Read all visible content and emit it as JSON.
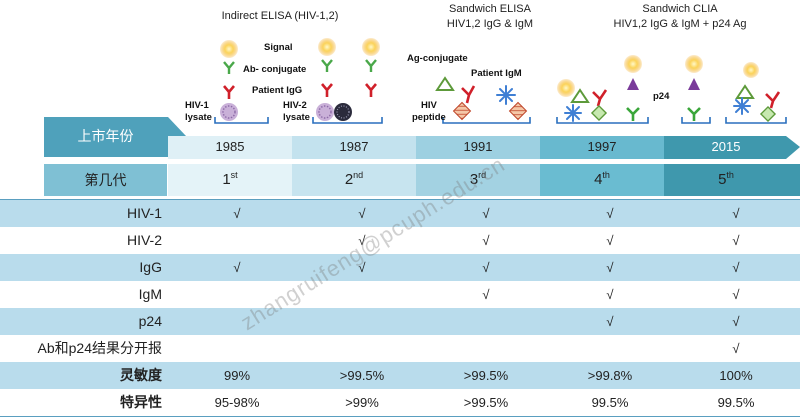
{
  "headers": {
    "indirect": "Indirect ELISA (HIV-1,2)",
    "sandwich_elisa_1": "Sandwich ELISA",
    "sandwich_elisa_2": "HIV1,2 IgG & IgM",
    "sandwich_clia_1": "Sandwich CLIA",
    "sandwich_clia_2": "HIV1,2 IgG & IgM + p24 Ag"
  },
  "labels": {
    "signal": "Signal",
    "ab_conjugate": "Ab- conjugate",
    "patient_igg": "Patient IgG",
    "hiv1_lysate_1": "HIV-1",
    "hiv1_lysate_2": "lysate",
    "hiv2_lysate_1": "HIV-2",
    "hiv2_lysate_2": "lysate",
    "ag_conjugate": "Ag-conjugate",
    "patient_igm": "Patient IgM",
    "hiv_peptide_1": "HIV",
    "hiv_peptide_2": "peptide",
    "p24": "p24"
  },
  "timeline": {
    "year_row_label": "上市年份",
    "gen_row_label": "第几代",
    "years": [
      "1985",
      "1987",
      "1991",
      "1997",
      "2015"
    ],
    "generations": [
      {
        "num": "1",
        "sup": "st"
      },
      {
        "num": "2",
        "sup": "nd"
      },
      {
        "num": "3",
        "sup": "rd"
      },
      {
        "num": "4",
        "sup": "th"
      },
      {
        "num": "5",
        "sup": "th"
      }
    ]
  },
  "table": {
    "rows": [
      {
        "label": "HIV-1",
        "cells": [
          "√",
          "√",
          "√",
          "√",
          "√"
        ]
      },
      {
        "label": "HIV-2",
        "cells": [
          "",
          "√",
          "√",
          "√",
          "√"
        ]
      },
      {
        "label": "IgG",
        "cells": [
          "√",
          "√",
          "√",
          "√",
          "√"
        ]
      },
      {
        "label": "IgM",
        "cells": [
          "",
          "",
          "√",
          "√",
          "√"
        ]
      },
      {
        "label": "p24",
        "cells": [
          "",
          "",
          "",
          "√",
          "√"
        ]
      },
      {
        "label": "Ab和p24结果分开报",
        "cells": [
          "",
          "",
          "",
          "",
          "√"
        ]
      },
      {
        "label": "灵敏度",
        "cells": [
          "99%",
          ">99.5%",
          ">99.5%",
          ">99.8%",
          "100%"
        ]
      },
      {
        "label": "特异性",
        "cells": [
          "95-98%",
          ">99%",
          ">99.5%",
          "99.5%",
          "99.5%"
        ]
      }
    ]
  },
  "watermark": "zhangruifeng@pcuph.edu.cn",
  "colors": {
    "shade_row": "#b9dcec",
    "arrow_1": "#dff0f6",
    "arrow_2": "#c3e2ee",
    "arrow_3": "#9dd0e1",
    "arrow_4": "#68b9cf",
    "arrow_5": "#3f98ad"
  }
}
